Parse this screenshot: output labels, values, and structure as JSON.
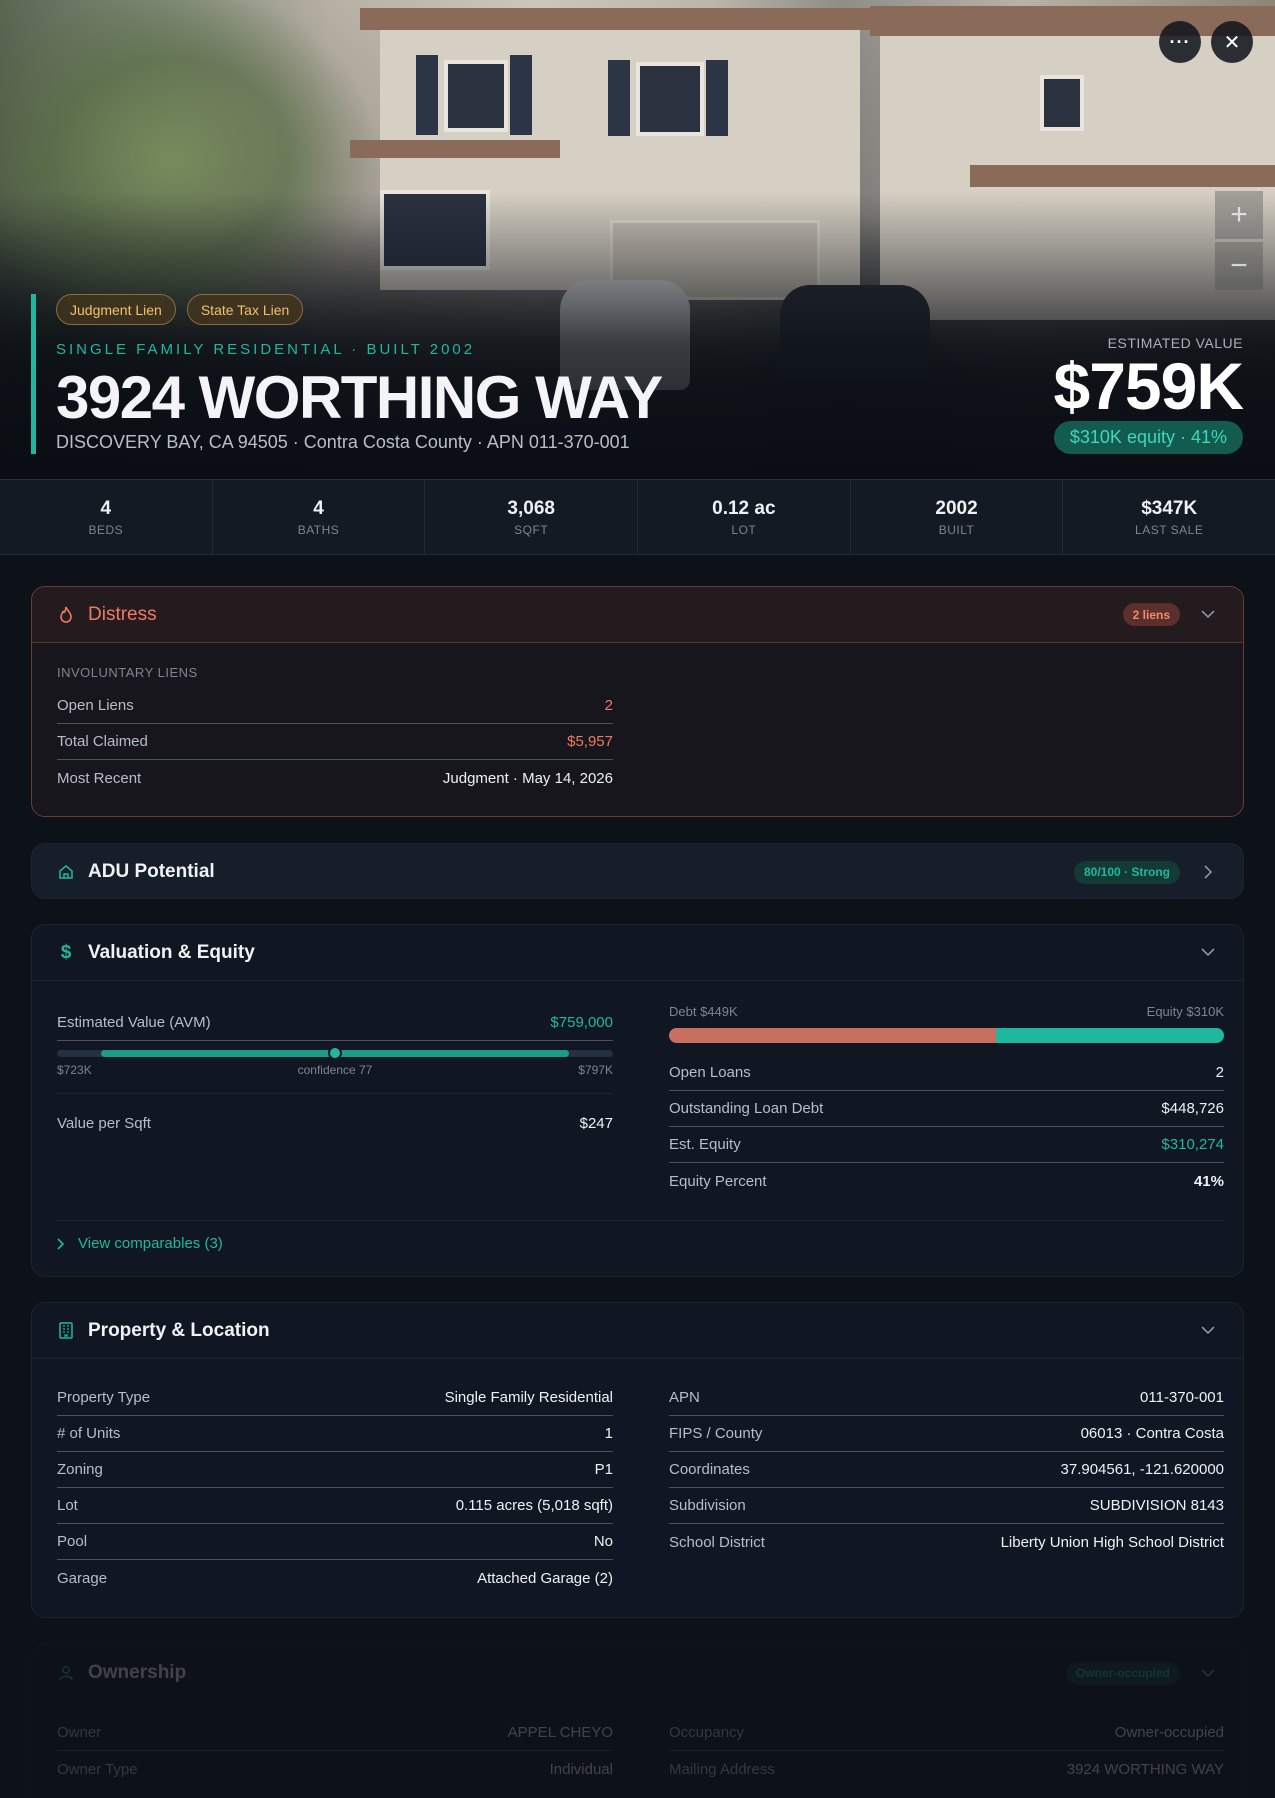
{
  "hero": {
    "tags": [
      "Judgment Lien",
      "State Tax Lien"
    ],
    "kicker": "SINGLE FAMILY RESIDENTIAL · BUILT 2002",
    "address": "3924 WORTHING WAY",
    "subaddress": "DISCOVERY BAY, CA 94505 · Contra Costa County · APN 011-370-001",
    "estimated_label": "ESTIMATED VALUE",
    "estimated_value": "$759K",
    "equity_pill": "$310K equity · 41%",
    "more_label": "···",
    "close_label": "✕",
    "zoom_in": "+",
    "zoom_out": "−"
  },
  "stats": [
    {
      "value": "4",
      "label": "BEDS"
    },
    {
      "value": "4",
      "label": "BATHS"
    },
    {
      "value": "3,068",
      "label": "SQFT"
    },
    {
      "value": "0.12 ac",
      "label": "LOT"
    },
    {
      "value": "2002",
      "label": "BUILT"
    },
    {
      "value": "$347K",
      "label": "LAST SALE"
    }
  ],
  "distress": {
    "title": "Distress",
    "badge": "2 liens",
    "section_label": "INVOLUNTARY LIENS",
    "rows": [
      {
        "k": "Open Liens",
        "v": "2"
      },
      {
        "k": "Total Claimed",
        "v": "$5,957"
      },
      {
        "k": "Most Recent",
        "v": "Judgment · May 14, 2026"
      }
    ]
  },
  "adu": {
    "title": "ADU Potential",
    "badge": "80/100 · Strong"
  },
  "valuation": {
    "title": "Valuation & Equity",
    "avm_label": "Estimated Value (AVM)",
    "avm_value": "$759,000",
    "range_low": "$723K",
    "range_mid": "confidence 77",
    "range_high": "$797K",
    "avm_fill_start": 0.08,
    "avm_fill_end": 0.92,
    "avm_point": 0.5,
    "value_per_sqft_label": "Value per Sqft",
    "value_per_sqft": "$247",
    "debt_label": "Debt $449K",
    "equity_label": "Equity $310K",
    "debt_fraction": 0.59,
    "rows": [
      {
        "k": "Open Loans",
        "v": "2"
      },
      {
        "k": "Outstanding Loan Debt",
        "v": "$448,726"
      },
      {
        "k": "Est. Equity",
        "v": "$310,274"
      },
      {
        "k": "Equity Percent",
        "v": "41%"
      }
    ],
    "comparables": "View comparables (3)"
  },
  "property": {
    "title": "Property & Location",
    "left": [
      {
        "k": "Property Type",
        "v": "Single Family Residential"
      },
      {
        "k": "# of Units",
        "v": "1"
      },
      {
        "k": "Zoning",
        "v": "P1"
      },
      {
        "k": "Lot",
        "v": "0.115 acres (5,018 sqft)"
      },
      {
        "k": "Pool",
        "v": "No"
      },
      {
        "k": "Garage",
        "v": "Attached Garage (2)"
      }
    ],
    "right": [
      {
        "k": "APN",
        "v": "011-370-001"
      },
      {
        "k": "FIPS / County",
        "v": "06013 · Contra Costa"
      },
      {
        "k": "Coordinates",
        "v": "37.904561, -121.620000"
      },
      {
        "k": "Subdivision",
        "v": "SUBDIVISION 8143"
      },
      {
        "k": "School District",
        "v": "Liberty Union High School District"
      }
    ]
  },
  "ownership": {
    "title": "Ownership",
    "badge": "Owner-occupied",
    "left": [
      {
        "k": "Owner",
        "v": "APPEL CHEYO"
      },
      {
        "k": "Owner Type",
        "v": "Individual"
      }
    ],
    "right": [
      {
        "k": "Occupancy",
        "v": "Owner-occupied"
      },
      {
        "k": "Mailing Address",
        "v": "3924 WORTHING WAY"
      }
    ]
  },
  "colors": {
    "accent": "#1fb89e",
    "danger": "#ef7a64",
    "warn": "#f1c26b"
  }
}
